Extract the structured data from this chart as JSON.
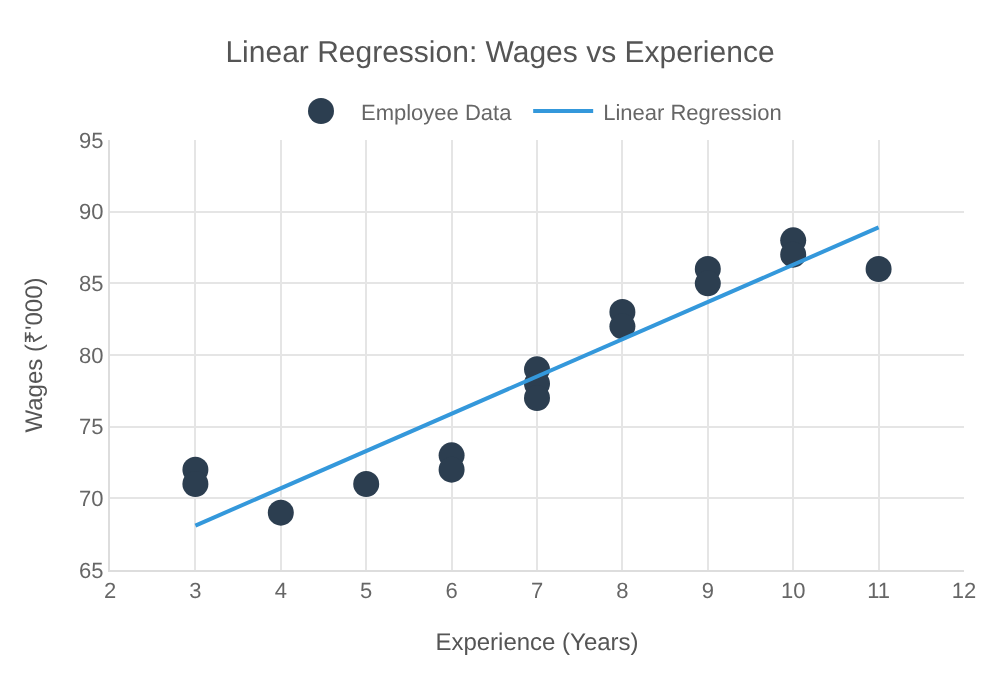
{
  "chart_data": {
    "type": "scatter",
    "title": "Linear Regression: Wages vs Experience",
    "xlabel": "Experience (Years)",
    "ylabel": "Wages (₹'000)",
    "xlim": [
      2,
      12
    ],
    "xticks": [
      2,
      3,
      4,
      5,
      6,
      7,
      8,
      9,
      10,
      11,
      12
    ],
    "ylim": [
      65,
      95
    ],
    "yticks": [
      65,
      70,
      75,
      80,
      85,
      90,
      95
    ],
    "grid": true,
    "legend": "top",
    "marker": "circle",
    "series": [
      {
        "name": "Employee Data",
        "color": "#2c3e50",
        "x": [
          3,
          3,
          4,
          5,
          6,
          6,
          7,
          7,
          7,
          8,
          8,
          9,
          9,
          10,
          10,
          11
        ],
        "values": [
          72,
          71,
          69,
          71,
          73,
          72,
          79,
          78,
          77,
          83,
          82,
          86,
          85,
          88,
          87,
          86
        ]
      },
      {
        "name": "Linear Regression",
        "type": "line",
        "color": "#3498db",
        "x": [
          3,
          11
        ],
        "values": [
          68.1,
          88.9
        ],
        "marker": "none",
        "line_style": "solid"
      }
    ]
  }
}
